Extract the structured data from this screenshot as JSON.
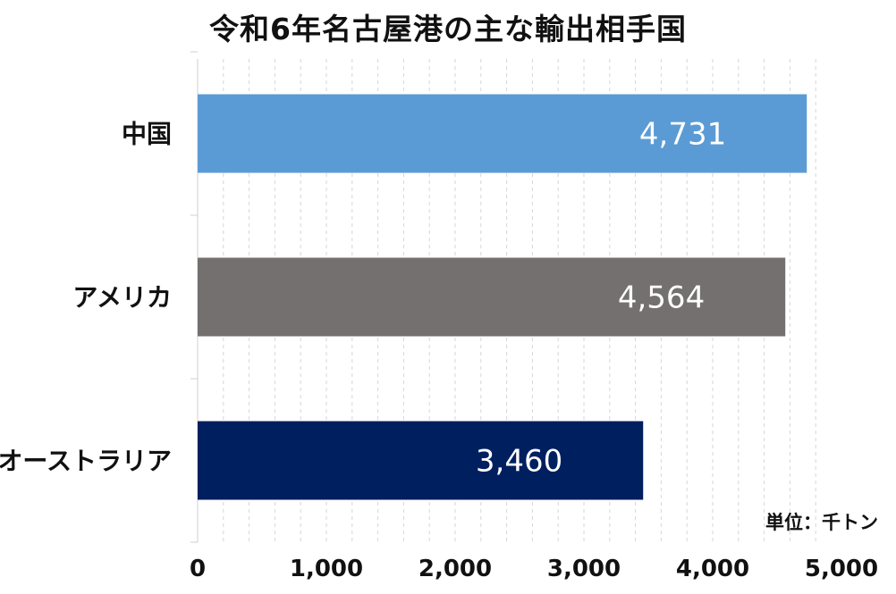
{
  "chart_data": {
    "type": "bar",
    "orientation": "horizontal",
    "title": "令和6年名古屋港の主な輸出相手国",
    "unit_label": "単位：千トン",
    "categories": [
      "中国",
      "アメリカ",
      "オーストラリア"
    ],
    "values": [
      4731,
      4564,
      3460
    ],
    "value_labels": [
      "4,731",
      "4,564",
      "3,460"
    ],
    "colors": [
      "#5b9bd5",
      "#757070",
      "#001f5f"
    ],
    "xlim": [
      0,
      5000
    ],
    "x_ticks": [
      0,
      1000,
      2000,
      3000,
      4000,
      5000
    ],
    "x_tick_labels": [
      "0",
      "1,000",
      "2,000",
      "3,000",
      "4,000",
      "5,000"
    ],
    "grid": "vertical dashed",
    "legend": "none"
  }
}
